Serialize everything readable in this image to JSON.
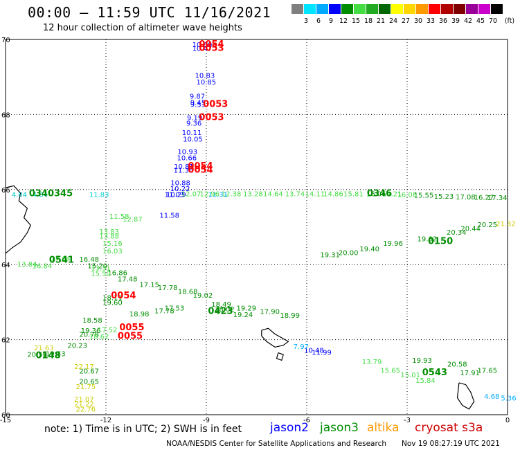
{
  "header": {
    "title": "00:00 – 11:59 UTC 11/16/2021",
    "subtitle": "12 hour collection of altimeter wave heights"
  },
  "legend": {
    "swatches": [
      {
        "color": "#7f7f7f",
        "label": ""
      },
      {
        "color": "#00e5ff",
        "label": "3"
      },
      {
        "color": "#00aaff",
        "label": "6"
      },
      {
        "color": "#0000ff",
        "label": "9"
      },
      {
        "color": "#008c00",
        "label": "12"
      },
      {
        "color": "#44dd44",
        "label": "15"
      },
      {
        "color": "#22aa22",
        "label": "18"
      },
      {
        "color": "#006600",
        "label": "21"
      },
      {
        "color": "#ffff00",
        "label": "24"
      },
      {
        "color": "#ffd700",
        "label": "27"
      },
      {
        "color": "#ff9900",
        "label": "30"
      },
      {
        "color": "#ff0000",
        "label": "33"
      },
      {
        "color": "#b00000",
        "label": "36"
      },
      {
        "color": "#7f0000",
        "label": "39"
      },
      {
        "color": "#990099",
        "label": "42"
      },
      {
        "color": "#cc00cc",
        "label": "45"
      },
      {
        "color": "#000000",
        "label": "70"
      }
    ],
    "unit": "(ft)"
  },
  "footer": {
    "note": "note:  1) Time is in UTC;  2) SWH is in feet",
    "satellites": [
      {
        "name": "jason2",
        "color": "#0000ff"
      },
      {
        "name": "jason3",
        "color": "#008c00"
      },
      {
        "name": "altika",
        "color": "#ff9900"
      },
      {
        "name": "cryosat s3a",
        "color": "#cc0000"
      }
    ],
    "credit": "NOAA/NESDIS Center for Satellite Applications and Research",
    "timestamp": "Nov 19 08:27:19 UTC 2021"
  },
  "chart_data": {
    "type": "scatter",
    "title": "00:00 – 11:59 UTC 11/16/2021",
    "subtitle": "12 hour collection of altimeter wave heights",
    "xlabel": "",
    "ylabel": "",
    "xlim": [
      -15,
      0
    ],
    "ylim": [
      60,
      70
    ],
    "xticks": [
      -15,
      -12,
      -9,
      -6,
      -3,
      0
    ],
    "yticks": [
      60,
      62,
      64,
      66,
      68,
      70
    ],
    "xtick_labels": [
      "-15",
      "-12",
      "-9",
      "-6",
      "-3",
      "0"
    ],
    "ytick_labels": [
      "60",
      "62",
      "64",
      "66",
      "68",
      "70"
    ],
    "grid": true,
    "coastlines": [
      [
        [
          -15,
          66.05
        ],
        [
          -14.75,
          66.1
        ],
        [
          -14.55,
          65.9
        ],
        [
          -14.6,
          65.7
        ],
        [
          -14.35,
          65.5
        ],
        [
          -14.45,
          65.25
        ],
        [
          -14.25,
          65.05
        ],
        [
          -14.35,
          64.85
        ],
        [
          -14.55,
          64.6
        ],
        [
          -14.8,
          64.45
        ],
        [
          -15,
          64.3
        ]
      ],
      [
        [
          -7.35,
          62.25
        ],
        [
          -7.15,
          62.3
        ],
        [
          -6.95,
          62.15
        ],
        [
          -6.75,
          62.05
        ],
        [
          -6.55,
          61.95
        ],
        [
          -6.7,
          61.85
        ],
        [
          -6.95,
          61.8
        ],
        [
          -7.2,
          61.95
        ],
        [
          -7.35,
          62.1
        ],
        [
          -7.35,
          62.25
        ]
      ],
      [
        [
          -6.85,
          61.65
        ],
        [
          -6.7,
          61.6
        ],
        [
          -6.75,
          61.45
        ],
        [
          -6.9,
          61.5
        ],
        [
          -6.85,
          61.65
        ]
      ],
      [
        [
          -1.45,
          60.85
        ],
        [
          -1.25,
          60.8
        ],
        [
          -1.1,
          60.6
        ],
        [
          -1.0,
          60.35
        ],
        [
          -1.15,
          60.15
        ],
        [
          -1.35,
          60.25
        ],
        [
          -1.5,
          60.45
        ],
        [
          -1.45,
          60.85
        ]
      ]
    ],
    "series": [
      {
        "name": "jason2",
        "color": "#0000ff",
        "points": [
          {
            "x": -9.42,
            "y": 69.8,
            "v": "10.60"
          },
          {
            "x": -9.42,
            "y": 69.7,
            "v": "10.47"
          },
          {
            "x": -9.34,
            "y": 68.98,
            "v": "10.83"
          },
          {
            "x": -9.3,
            "y": 68.8,
            "v": "10.85"
          },
          {
            "x": -9.5,
            "y": 68.42,
            "v": "9.87"
          },
          {
            "x": -9.48,
            "y": 68.26,
            "v": "9.45"
          },
          {
            "x": -9.48,
            "y": 68.2,
            "v": "9.53"
          },
          {
            "x": -9.58,
            "y": 67.85,
            "v": "9.19"
          },
          {
            "x": -9.6,
            "y": 67.7,
            "v": "9.36"
          },
          {
            "x": -9.73,
            "y": 67.45,
            "v": "10.11"
          },
          {
            "x": -9.7,
            "y": 67.28,
            "v": "10.05"
          },
          {
            "x": -9.86,
            "y": 66.95,
            "v": "10.93"
          },
          {
            "x": -9.88,
            "y": 66.78,
            "v": "10.66"
          },
          {
            "x": -9.97,
            "y": 66.55,
            "v": "10.81"
          },
          {
            "x": -9.98,
            "y": 66.45,
            "v": "11.36"
          },
          {
            "x": -10.07,
            "y": 66.12,
            "v": "10.88"
          },
          {
            "x": -10.08,
            "y": 65.96,
            "v": "10.22"
          },
          {
            "x": -10.2,
            "y": 65.8,
            "v": "10.29"
          },
          {
            "x": -10.25,
            "y": 65.8,
            "v": "11.03"
          },
          {
            "x": -10.4,
            "y": 65.25,
            "v": "11.58"
          },
          {
            "x": -6.08,
            "y": 61.65,
            "v": "10.48"
          },
          {
            "x": -5.85,
            "y": 61.6,
            "v": "11.99"
          }
        ]
      },
      {
        "name": "jason2-low",
        "color": "#00aaff",
        "points": [
          {
            "x": -8.95,
            "y": 65.8,
            "v": "11.31"
          },
          {
            "x": -6.4,
            "y": 61.75,
            "v": "7.97"
          },
          {
            "x": -0.7,
            "y": 60.42,
            "v": "4.68"
          },
          {
            "x": -0.2,
            "y": 60.38,
            "v": "5.36"
          }
        ]
      },
      {
        "name": "cyan",
        "color": "#00cccc",
        "points": [
          {
            "x": -14.82,
            "y": 65.8,
            "v": "4.84"
          },
          {
            "x": -14.2,
            "y": 65.8,
            "v": "4.84"
          },
          {
            "x": -12.5,
            "y": 65.8,
            "v": "11.83"
          }
        ]
      },
      {
        "name": "jason3",
        "color": "#008c00",
        "points": [
          {
            "x": -12.7,
            "y": 62.45,
            "v": "18.58"
          },
          {
            "x": -12.75,
            "y": 62.18,
            "v": "19.36"
          },
          {
            "x": -12.8,
            "y": 62.08,
            "v": "20.78"
          },
          {
            "x": -13.15,
            "y": 61.78,
            "v": "20.23"
          },
          {
            "x": -14.35,
            "y": 61.54,
            "v": "20.50"
          },
          {
            "x": -13.8,
            "y": 61.56,
            "v": "19.53"
          },
          {
            "x": -12.8,
            "y": 61.1,
            "v": "20.67"
          },
          {
            "x": -12.8,
            "y": 60.82,
            "v": "20.65"
          },
          {
            "x": -12.1,
            "y": 63.05,
            "v": "18.11"
          },
          {
            "x": -12.1,
            "y": 62.92,
            "v": "19.60"
          },
          {
            "x": -8.75,
            "y": 62.75,
            "v": "18.02"
          },
          {
            "x": -8.2,
            "y": 62.6,
            "v": "19.24"
          },
          {
            "x": -2.85,
            "y": 61.38,
            "v": "19.93"
          },
          {
            "x": -1.8,
            "y": 61.28,
            "v": "20.58"
          },
          {
            "x": -0.9,
            "y": 61.12,
            "v": "17.65"
          },
          {
            "x": -1.42,
            "y": 61.05,
            "v": "17.91"
          },
          {
            "x": -4.42,
            "y": 64.35,
            "v": "19.40"
          },
          {
            "x": -3.72,
            "y": 64.5,
            "v": "19.96"
          },
          {
            "x": -2.7,
            "y": 64.62,
            "v": "19.32"
          },
          {
            "x": -1.82,
            "y": 64.8,
            "v": "20.34"
          },
          {
            "x": -1.4,
            "y": 64.9,
            "v": "20.44"
          },
          {
            "x": -0.9,
            "y": 65.0,
            "v": "20.25"
          },
          {
            "x": -5.05,
            "y": 64.25,
            "v": "20.00"
          },
          {
            "x": -5.6,
            "y": 64.2,
            "v": "19.31"
          },
          {
            "x": -4.22,
            "y": 65.82,
            "v": "16.06"
          },
          {
            "x": -2.8,
            "y": 65.78,
            "v": "15.55"
          },
          {
            "x": -2.2,
            "y": 65.76,
            "v": "15.23"
          },
          {
            "x": -1.55,
            "y": 65.74,
            "v": "17.08"
          },
          {
            "x": -0.6,
            "y": 65.72,
            "v": "17.34"
          },
          {
            "x": -1.0,
            "y": 65.73,
            "v": "16.27"
          },
          {
            "x": -12.8,
            "y": 64.08,
            "v": "16.48"
          },
          {
            "x": -12.55,
            "y": 63.9,
            "v": "15.20"
          },
          {
            "x": -11.95,
            "y": 63.72,
            "v": "16.86"
          },
          {
            "x": -11.65,
            "y": 63.55,
            "v": "17.48"
          },
          {
            "x": -11.0,
            "y": 63.4,
            "v": "17.15"
          },
          {
            "x": -10.45,
            "y": 63.32,
            "v": "17.78"
          },
          {
            "x": -9.85,
            "y": 63.22,
            "v": "18.68"
          },
          {
            "x": -9.4,
            "y": 63.12,
            "v": "19.02"
          },
          {
            "x": -8.85,
            "y": 62.88,
            "v": "18.49"
          },
          {
            "x": -8.1,
            "y": 62.78,
            "v": "19.29"
          },
          {
            "x": -7.4,
            "y": 62.68,
            "v": "17.90"
          },
          {
            "x": -6.8,
            "y": 62.58,
            "v": "18.99"
          },
          {
            "x": -10.25,
            "y": 62.78,
            "v": "17.53"
          },
          {
            "x": -10.55,
            "y": 62.7,
            "v": "17.78"
          },
          {
            "x": -11.3,
            "y": 62.62,
            "v": "18.98"
          }
        ]
      },
      {
        "name": "jason3-light",
        "color": "#44dd44",
        "points": [
          {
            "x": -11.5,
            "y": 65.15,
            "v": "12.87"
          },
          {
            "x": -11.9,
            "y": 65.22,
            "v": "11.58"
          },
          {
            "x": -12.2,
            "y": 64.82,
            "v": "13.83"
          },
          {
            "x": -12.2,
            "y": 64.7,
            "v": "13.88"
          },
          {
            "x": -12.1,
            "y": 64.5,
            "v": "15.16"
          },
          {
            "x": -12.1,
            "y": 64.3,
            "v": "16.03"
          },
          {
            "x": -12.45,
            "y": 63.85,
            "v": "13.31"
          },
          {
            "x": -12.45,
            "y": 63.7,
            "v": "15.50"
          },
          {
            "x": -14.65,
            "y": 63.95,
            "v": "13.84"
          },
          {
            "x": -14.2,
            "y": 63.9,
            "v": "16.84"
          },
          {
            "x": -13.65,
            "y": 64.1,
            "v": "17.64"
          },
          {
            "x": -9.75,
            "y": 65.82,
            "v": "12.07"
          },
          {
            "x": -9.2,
            "y": 65.82,
            "v": "12.96"
          },
          {
            "x": -8.55,
            "y": 65.82,
            "v": "12.38"
          },
          {
            "x": -7.9,
            "y": 65.82,
            "v": "13.28"
          },
          {
            "x": -7.3,
            "y": 65.82,
            "v": "14.64"
          },
          {
            "x": -6.65,
            "y": 65.82,
            "v": "13.74"
          },
          {
            "x": -6.05,
            "y": 65.82,
            "v": "14.11"
          },
          {
            "x": -5.5,
            "y": 65.82,
            "v": "14.86"
          },
          {
            "x": -4.9,
            "y": 65.82,
            "v": "15.81"
          },
          {
            "x": -3.75,
            "y": 65.82,
            "v": "14.21"
          },
          {
            "x": -3.3,
            "y": 65.8,
            "v": "16.06"
          },
          {
            "x": -4.35,
            "y": 61.35,
            "v": "13.79"
          },
          {
            "x": -3.8,
            "y": 61.12,
            "v": "15.65"
          },
          {
            "x": -3.2,
            "y": 61.0,
            "v": "15.01"
          },
          {
            "x": -2.75,
            "y": 60.85,
            "v": "15.84"
          },
          {
            "x": -12.25,
            "y": 62.2,
            "v": "17.52"
          },
          {
            "x": -12.5,
            "y": 62.02,
            "v": "18.62"
          }
        ]
      },
      {
        "name": "altika",
        "color": "#cccc00",
        "points": [
          {
            "x": -14.15,
            "y": 61.72,
            "v": "21.63"
          },
          {
            "x": -12.95,
            "y": 61.22,
            "v": "22.17"
          },
          {
            "x": -12.9,
            "y": 60.68,
            "v": "21.75"
          },
          {
            "x": -12.95,
            "y": 60.35,
            "v": "21.07"
          },
          {
            "x": -12.95,
            "y": 60.22,
            "v": "21.22"
          },
          {
            "x": -12.9,
            "y": 60.08,
            "v": "22.76"
          },
          {
            "x": -0.35,
            "y": 65.03,
            "v": "21.32"
          }
        ]
      },
      {
        "name": "cryosat",
        "color": "#ff0000",
        "points": [
          {
            "x": -9.22,
            "y": 69.8,
            "v": "0054"
          },
          {
            "x": -9.22,
            "y": 69.7,
            "v": "0053"
          },
          {
            "x": -9.1,
            "y": 68.2,
            "v": "0053"
          },
          {
            "x": -9.22,
            "y": 67.85,
            "v": "0053"
          },
          {
            "x": -9.55,
            "y": 66.55,
            "v": "0054"
          },
          {
            "x": -9.55,
            "y": 66.45,
            "v": "0054"
          },
          {
            "x": -11.85,
            "y": 63.1,
            "v": "0054"
          },
          {
            "x": -11.6,
            "y": 62.25,
            "v": "0055"
          },
          {
            "x": -11.65,
            "y": 62.02,
            "v": "0055"
          }
        ]
      }
    ],
    "pass_labels": [
      {
        "x": -14.3,
        "y": 65.82,
        "v": "0340345",
        "color": "#008c00"
      },
      {
        "x": -13.7,
        "y": 64.05,
        "v": "0541",
        "color": "#008c00"
      },
      {
        "x": -8.95,
        "y": 62.68,
        "v": "0423",
        "color": "#008c00"
      },
      {
        "x": -2.38,
        "y": 64.55,
        "v": "0150",
        "color": "#008c00"
      },
      {
        "x": -4.2,
        "y": 65.82,
        "v": "0346",
        "color": "#008c00"
      },
      {
        "x": -2.55,
        "y": 61.05,
        "v": "0543",
        "color": "#008c00"
      },
      {
        "x": -14.1,
        "y": 61.5,
        "v": "0148",
        "color": "#008c00"
      }
    ]
  }
}
